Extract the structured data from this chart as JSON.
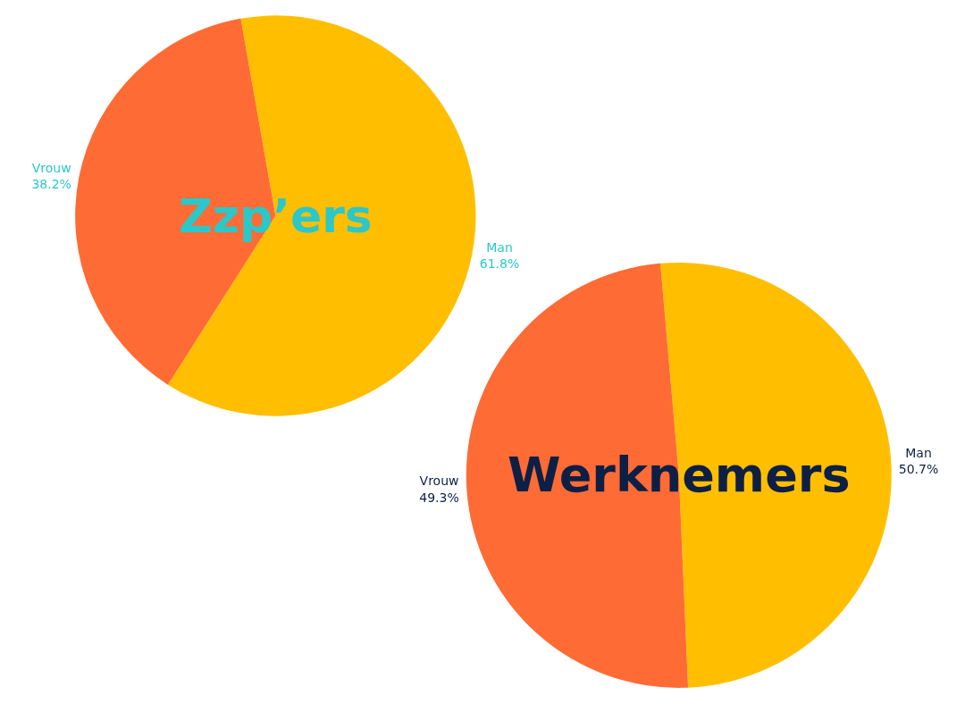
{
  "chart_data": [
    {
      "type": "pie",
      "title": "Zzp’ers",
      "categories": [
        "Man",
        "Vrouw"
      ],
      "values": [
        61.8,
        38.2
      ],
      "value_labels": [
        "61.8%",
        "38.2%"
      ],
      "colors": [
        "#ffbf00",
        "#ff6b35"
      ],
      "legend": false
    },
    {
      "type": "pie",
      "title": "Werknemers",
      "categories": [
        "Man",
        "Vrouw"
      ],
      "values": [
        50.7,
        49.3
      ],
      "value_labels": [
        "50.7%",
        "49.3%"
      ],
      "colors": [
        "#ffbf00",
        "#ff6b35"
      ],
      "legend": false
    }
  ]
}
